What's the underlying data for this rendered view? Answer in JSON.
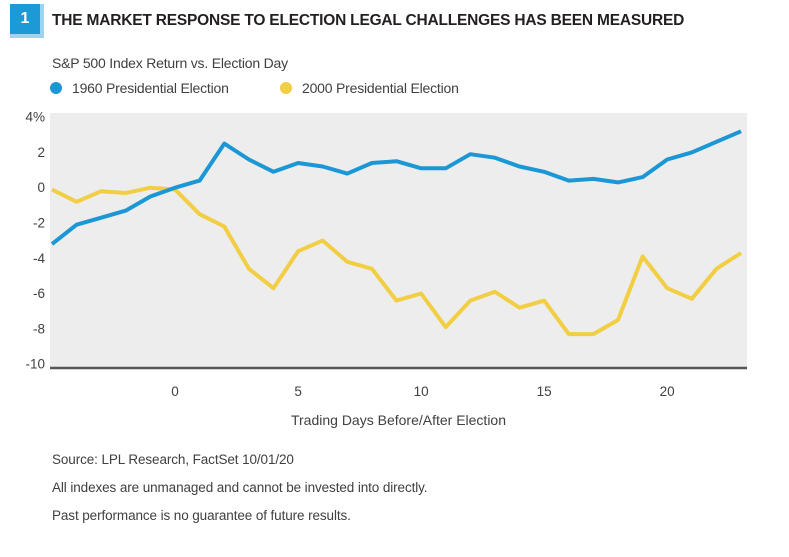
{
  "header": {
    "figure_number": "1",
    "title": "THE MARKET RESPONSE TO ELECTION LEGAL CHALLENGES HAS BEEN MEASURED",
    "subtitle": "S&P 500 Index Return vs. Election Day"
  },
  "legend": {
    "items": [
      {
        "label": "1960 Presidential Election",
        "color": "#1b97d5"
      },
      {
        "label": "2000 Presidential Election",
        "color": "#f1ce44"
      }
    ]
  },
  "footer": {
    "source": "Source: LPL Research, FactSet   10/01/20",
    "disclaimer1": "All indexes are unmanaged and cannot be invested into directly.",
    "disclaimer2": "Past performance is no guarantee of future results."
  },
  "chart_data": {
    "type": "line",
    "xlabel": "Trading Days Before/After Election",
    "x": [
      -5,
      -4,
      -3,
      -2,
      -1,
      0,
      1,
      2,
      3,
      4,
      5,
      6,
      7,
      8,
      9,
      10,
      11,
      12,
      13,
      14,
      15,
      16,
      17,
      18,
      19,
      20,
      21,
      22,
      23
    ],
    "series": [
      {
        "name": "2000 Presidential Election",
        "color": "#f1ce44",
        "values": [
          -0.1,
          -0.8,
          -0.2,
          -0.3,
          0.0,
          -0.1,
          -1.5,
          -2.2,
          -4.6,
          -5.7,
          -3.6,
          -3.0,
          -4.2,
          -4.6,
          -6.4,
          -6.0,
          -7.9,
          -6.4,
          -5.9,
          -6.8,
          -6.4,
          -8.3,
          -8.3,
          -7.5,
          -3.9,
          -5.7,
          -6.3,
          -4.6,
          -3.7
        ]
      },
      {
        "name": "1960 Presidential Election",
        "color": "#1b97d5",
        "values": [
          -3.2,
          -2.1,
          -1.7,
          -1.3,
          -0.5,
          0.0,
          0.4,
          2.5,
          1.6,
          0.9,
          1.4,
          1.2,
          0.8,
          1.4,
          1.5,
          1.1,
          1.1,
          1.9,
          1.7,
          1.2,
          0.9,
          0.4,
          0.5,
          0.3,
          0.6,
          1.6,
          2.0,
          2.6,
          3.2
        ]
      }
    ],
    "xlim": [
      -5,
      23
    ],
    "ylim": [
      -10,
      4
    ],
    "xticks": {
      "values": [
        0,
        5,
        10,
        15,
        20
      ],
      "labels": [
        "0",
        "5",
        "10",
        "15",
        "20"
      ]
    },
    "yticks": {
      "values": [
        4,
        2,
        0,
        -2,
        -4,
        -6,
        -8,
        -10
      ],
      "labels": [
        "4%",
        "2",
        "0",
        "-2",
        "-4",
        "-6",
        "-8",
        "-10"
      ]
    },
    "grid": false,
    "legend_position": "top-left-above-plot",
    "colors": {
      "plot_bg": "#ededed",
      "axis_line": "#55565a",
      "tick_text": "#3f4042"
    }
  }
}
